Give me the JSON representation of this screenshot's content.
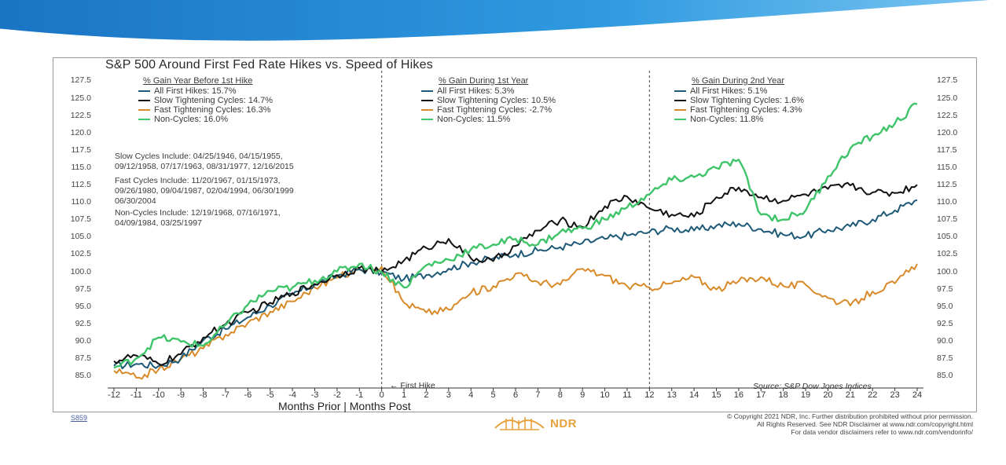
{
  "chart_data": {
    "type": "line",
    "title": "S&P 500 Around First Fed Rate Hikes vs. Speed of Hikes",
    "xlabel": "Months Prior | Months Post",
    "ylabel": "",
    "xlim": [
      -12,
      24
    ],
    "ylim": [
      84,
      128
    ],
    "x_ticks": [
      "-12",
      "-11",
      "-10",
      "-9",
      "-8",
      "-7",
      "-6",
      "-5",
      "-4",
      "-3",
      "-2",
      "-1",
      "0",
      "1",
      "2",
      "3",
      "4",
      "5",
      "6",
      "7",
      "8",
      "9",
      "10",
      "11",
      "12",
      "13",
      "14",
      "15",
      "16",
      "17",
      "18",
      "19",
      "20",
      "21",
      "22",
      "23",
      "24"
    ],
    "y_ticks": [
      "127.5",
      "125.0",
      "122.5",
      "120.0",
      "117.5",
      "115.0",
      "112.5",
      "110.0",
      "107.5",
      "105.0",
      "102.5",
      "100.0",
      "97.5",
      "95.0",
      "92.5",
      "90.0",
      "87.5",
      "85.0"
    ],
    "x": [
      -12,
      -11,
      -10,
      -9,
      -8,
      -7,
      -6,
      -5,
      -4,
      -3,
      -2,
      -1,
      0,
      1,
      2,
      3,
      4,
      5,
      6,
      7,
      8,
      9,
      10,
      11,
      12,
      13,
      14,
      15,
      16,
      17,
      18,
      19,
      20,
      21,
      22,
      23,
      24
    ],
    "series": [
      {
        "name": "All First Hikes",
        "color": "#1e5a78",
        "values": [
          86.5,
          86.8,
          86.5,
          87.6,
          90.2,
          91.8,
          93.5,
          95.2,
          96.8,
          98.2,
          99.5,
          100.4,
          100.0,
          99.0,
          99.6,
          100.5,
          101.4,
          102.0,
          102.6,
          103.1,
          103.6,
          104.2,
          104.8,
          105.3,
          105.8,
          106.3,
          106.0,
          106.7,
          107.0,
          106.2,
          105.4,
          105.2,
          106.1,
          106.6,
          107.6,
          108.9,
          110.4
        ]
      },
      {
        "name": "Slow Tightening Cycles",
        "color": "#111111",
        "values": [
          87.2,
          88.0,
          86.8,
          88.2,
          90.6,
          92.5,
          94.2,
          95.6,
          97.0,
          98.3,
          99.6,
          100.6,
          100.0,
          101.7,
          103.5,
          104.8,
          102.0,
          101.6,
          103.8,
          106.0,
          107.5,
          106.5,
          109.5,
          110.9,
          109.2,
          108.3,
          108.0,
          110.8,
          112.2,
          110.8,
          110.3,
          111.2,
          112.0,
          112.5,
          111.5,
          111.4,
          112.6
        ]
      },
      {
        "name": "Fast Tightening Cycles",
        "color": "#d98a28",
        "values": [
          85.8,
          84.8,
          86.0,
          87.5,
          89.0,
          91.0,
          92.7,
          94.3,
          95.8,
          97.8,
          99.2,
          100.4,
          100.8,
          95.6,
          94.2,
          94.6,
          97.0,
          98.0,
          99.8,
          98.6,
          98.2,
          100.5,
          99.5,
          98.0,
          97.8,
          98.4,
          99.3,
          97.5,
          98.7,
          99.3,
          98.0,
          98.2,
          96.3,
          95.2,
          97.2,
          98.4,
          101.2
        ]
      },
      {
        "name": "Non-Cycles",
        "color": "#3fc46a",
        "values": [
          86.2,
          87.6,
          90.6,
          90.0,
          89.4,
          92.4,
          95.3,
          97.3,
          97.8,
          98.8,
          100.1,
          101.2,
          100.0,
          97.8,
          101.0,
          101.8,
          103.3,
          104.0,
          104.8,
          104.0,
          105.8,
          106.3,
          107.6,
          109.3,
          111.2,
          113.3,
          113.7,
          115.0,
          116.2,
          108.3,
          107.6,
          108.9,
          113.8,
          117.8,
          119.6,
          121.4,
          124.2
        ]
      }
    ],
    "legend_groups": [
      {
        "heading": "% Gain Year Before 1st Hike",
        "entries": [
          "All First Hikes: 15.7%",
          "Slow Tightening Cycles: 14.7%",
          "Fast Tightening Cycles: 16.3%",
          "Non-Cycles: 16.0%"
        ]
      },
      {
        "heading": "% Gain During 1st Year",
        "entries": [
          "All First Hikes: 5.3%",
          "Slow Tightening Cycles: 10.5%",
          "Fast Tightening Cycles: -2.7%",
          "Non-Cycles: 11.5%"
        ]
      },
      {
        "heading": "% Gain During 2nd Year",
        "entries": [
          "All First Hikes: 5.1%",
          "Slow Tightening Cycles: 1.6%",
          "Fast Tightening Cycles: 4.3%",
          "Non-Cycles: 11.8%"
        ]
      }
    ],
    "notes": [
      [
        "Slow Cycles Include: 04/25/1946, 04/15/1955,",
        "09/12/1958, 07/17/1963, 08/31/1977, 12/16/2015"
      ],
      [
        "Fast Cycles Include: 11/20/1967, 01/15/1973,",
        "09/26/1980, 09/04/1987, 02/04/1994, 06/30/1999",
        "06/30/2004"
      ],
      [
        "Non-Cycles Include: 12/19/1968, 07/16/1971,",
        "04/09/1984, 03/25/1997"
      ]
    ],
    "vlines": [
      0,
      12
    ],
    "annotation": "First Hike",
    "source": "Source:     S&P Dow Jones Indices"
  },
  "footer": {
    "chart_id": "S859",
    "logo_text": "NDR",
    "copyright": [
      "© Copyright 2021 NDR, Inc. Further distribution prohibited without prior permission.",
      "All Rights Reserved. See NDR Disclaimer at www.ndr.com/copyright.html",
      "For data vendor disclaimers refer to www.ndr.com/vendorinfo/"
    ]
  }
}
